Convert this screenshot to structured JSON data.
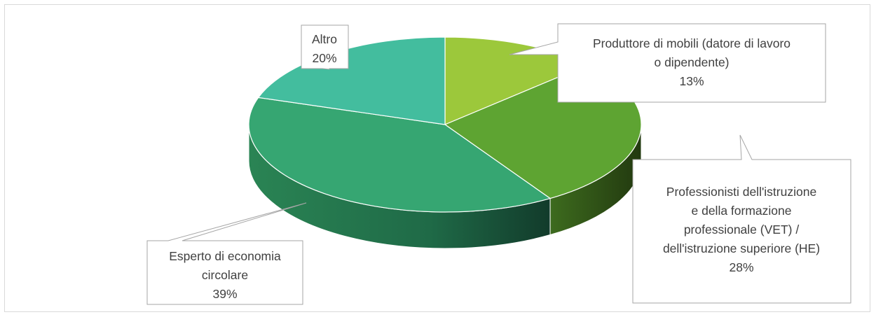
{
  "chart_data": {
    "type": "pie",
    "title": "",
    "series": [
      {
        "name": "Produttore di mobili (datore di lavoro o dipendente)",
        "label_lines": [
          "Produttore di mobili (datore di lavoro",
          "o dipendente)"
        ],
        "value": 13,
        "value_label": "13%",
        "color": "#9cc83b"
      },
      {
        "name": "Professionisti dell'istruzione e della formazione professionale (VET) / dell'istruzione superiore (HE)",
        "label_lines": [
          "Professionisti dell'istruzione",
          "e della formazione",
          "professionale (VET) /",
          "dell'istruzione superiore (HE)"
        ],
        "value": 28,
        "value_label": "28%",
        "color": "#5ea432"
      },
      {
        "name": "Esperto di economia circolare",
        "label_lines": [
          "Esperto di economia",
          "circolare"
        ],
        "value": 39,
        "value_label": "39%",
        "color": "#36a672"
      },
      {
        "name": "Altro",
        "label_lines": [
          "Altro"
        ],
        "value": 20,
        "value_label": "20%",
        "color": "#43bd9e"
      }
    ],
    "legend": "none"
  }
}
